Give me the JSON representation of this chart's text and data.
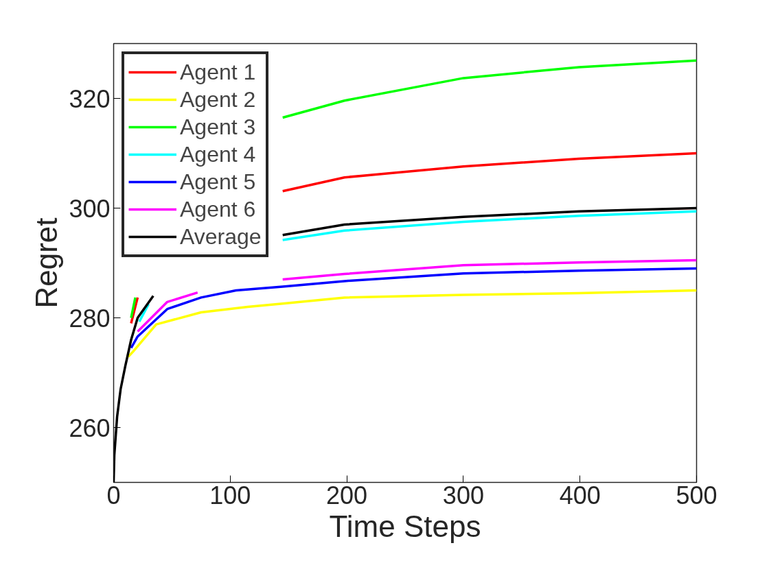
{
  "chart_data": {
    "type": "line",
    "xlabel": "Time Steps",
    "ylabel": "Regret",
    "xlim": [
      0,
      500
    ],
    "ylim": [
      250,
      330
    ],
    "xticks": [
      0,
      100,
      200,
      300,
      400,
      500
    ],
    "yticks": [
      260,
      280,
      300,
      320
    ],
    "grid": false,
    "legend": "top left",
    "line_style": "solid",
    "marker": "none",
    "series": [
      {
        "name": "Agent 1",
        "color": "#ff0000",
        "x": [
          15,
          20.6,
          30,
          145,
          198,
          300,
          399,
          500
        ],
        "values": [
          279,
          283.7,
          null,
          303.1,
          305.6,
          307.6,
          309,
          310
        ]
      },
      {
        "name": "Agent 2",
        "color": "#ffff00",
        "x": [
          12.5,
          16.5,
          36.5,
          75,
          115,
          145,
          198,
          300,
          399,
          500
        ],
        "values": [
          272.9,
          273.8,
          278.8,
          281,
          282,
          282.6,
          283.7,
          284.2,
          284.5,
          285
        ]
      },
      {
        "name": "Agent 3",
        "color": "#00ff00",
        "x": [
          15,
          18.6,
          30,
          145,
          198,
          300,
          399,
          500
        ],
        "values": [
          280,
          283.7,
          null,
          316.5,
          319.6,
          323.7,
          325.7,
          326.9
        ]
      },
      {
        "name": "Agent 4",
        "color": "#00ffff",
        "x": [
          22,
          30,
          50,
          145,
          198,
          300,
          399,
          500
        ],
        "values": [
          279.3,
          282.5,
          null,
          294.2,
          295.9,
          297.5,
          298.6,
          299.4
        ]
      },
      {
        "name": "Agent 5",
        "color": "#0000ff",
        "x": [
          15,
          20.6,
          46,
          75,
          105,
          145,
          198,
          300,
          399,
          500
        ],
        "values": [
          274.5,
          276.6,
          281.6,
          283.7,
          285,
          285.7,
          286.7,
          288.1,
          288.6,
          289
        ]
      },
      {
        "name": "Agent 6",
        "color": "#ff00ff",
        "x": [
          20.6,
          46,
          72,
          100,
          145,
          198,
          300,
          399,
          500
        ],
        "values": [
          277.5,
          282.9,
          284.6,
          null,
          287,
          288,
          289.6,
          290.1,
          290.5
        ]
      },
      {
        "name": "Average",
        "color": "#000000",
        "x": [
          0,
          0.6,
          3,
          6,
          10,
          15,
          20.6,
          34,
          60,
          145,
          198,
          300,
          399,
          500
        ],
        "values": [
          250,
          255,
          262,
          267,
          271.2,
          276,
          280,
          284,
          null,
          295.1,
          297,
          298.4,
          299.4,
          300
        ]
      }
    ]
  }
}
